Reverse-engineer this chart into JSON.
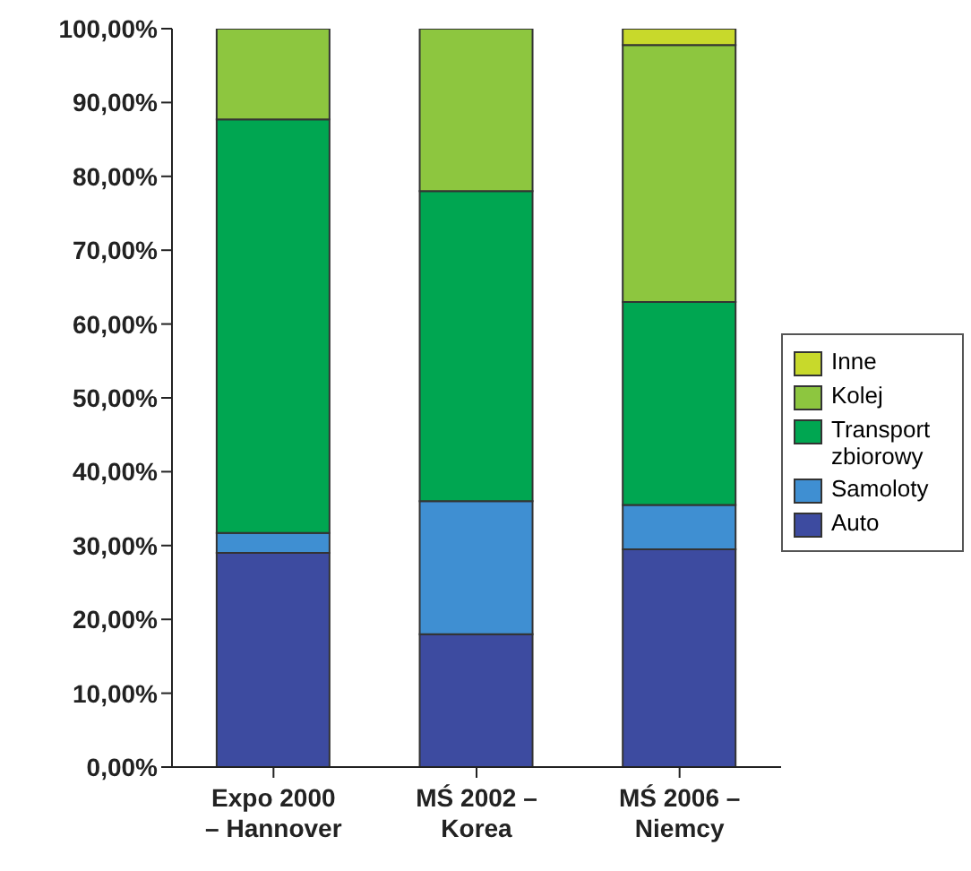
{
  "chart_data": {
    "type": "bar",
    "stacked": true,
    "categories": [
      "Expo 2000\n– Hannover",
      "MŚ 2002 –\nKorea",
      "MŚ 2006 –\nNiemcy"
    ],
    "series": [
      {
        "name": "Auto",
        "color": "#3d4ba0",
        "values": [
          29,
          18,
          29.5
        ]
      },
      {
        "name": "Samoloty",
        "color": "#3f8fd2",
        "values": [
          2.7,
          18,
          6
        ]
      },
      {
        "name": "Transport zbiorowy",
        "color": "#00a651",
        "values": [
          56,
          42,
          27.5
        ]
      },
      {
        "name": "Kolej",
        "color": "#8dc63f",
        "values": [
          12.3,
          22,
          34.8
        ]
      },
      {
        "name": "Inne",
        "color": "#c8d92b",
        "values": [
          0,
          0,
          2.2
        ]
      }
    ],
    "ylim": [
      0,
      100
    ],
    "yticks": [
      {
        "value": 0,
        "label": "0,00%"
      },
      {
        "value": 10,
        "label": "10,00%"
      },
      {
        "value": 20,
        "label": "20,00%"
      },
      {
        "value": 30,
        "label": "30,00%"
      },
      {
        "value": 40,
        "label": "40,00%"
      },
      {
        "value": 50,
        "label": "50,00%"
      },
      {
        "value": 60,
        "label": "60,00%"
      },
      {
        "value": 70,
        "label": "70,00%"
      },
      {
        "value": 80,
        "label": "80,00%"
      },
      {
        "value": 90,
        "label": "90,00%"
      },
      {
        "value": 100,
        "label": "100,00%"
      }
    ],
    "grid": false,
    "legend": "right"
  }
}
